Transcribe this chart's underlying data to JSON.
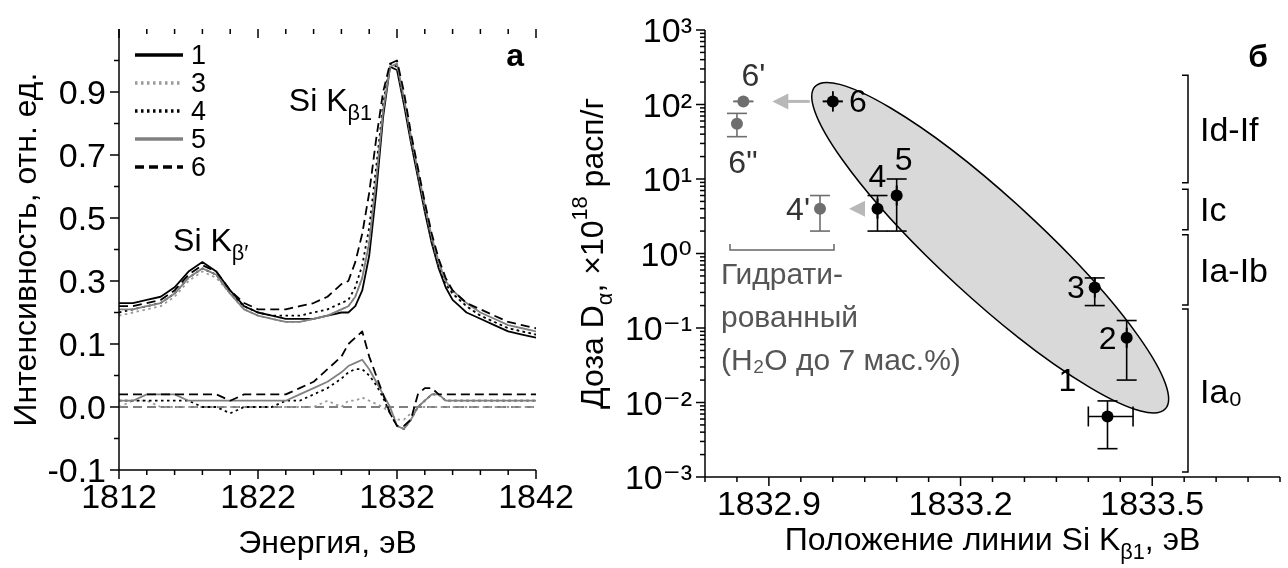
{
  "chart_data": [
    {
      "type": "line",
      "xlabel": "Энергия, эВ",
      "ylabel": "Интенсивность, отн. ед.",
      "legend": "top left",
      "annotations": [
        "а",
        "Si K$_{β′}$",
        "Si K$_{β1}$"
      ],
      "x": [
        1812,
        1813,
        1814,
        1815,
        1816,
        1817,
        1818,
        1819,
        1820,
        1821,
        1822,
        1823,
        1824,
        1825,
        1826,
        1827,
        1828,
        1828.5,
        1829,
        1829.5,
        1830,
        1830.5,
        1831,
        1831.5,
        1832,
        1832.5,
        1833,
        1833.5,
        1834,
        1834.5,
        1835,
        1835.5,
        1836,
        1836.5,
        1837,
        1838,
        1839,
        1840,
        1841,
        1842
      ],
      "series": [
        {
          "name": "1",
          "color": "#000000",
          "line_style": "solid",
          "axis": "y2",
          "values": [
            0.23,
            0.23,
            0.24,
            0.25,
            0.28,
            0.33,
            0.36,
            0.33,
            0.27,
            0.22,
            0.2,
            0.19,
            0.18,
            0.18,
            0.18,
            0.19,
            0.2,
            0.2,
            0.22,
            0.27,
            0.38,
            0.58,
            0.82,
            0.98,
            0.97,
            0.86,
            0.74,
            0.63,
            0.52,
            0.42,
            0.34,
            0.28,
            0.24,
            0.22,
            0.2,
            0.18,
            0.16,
            0.14,
            0.13,
            0.12
          ]
        },
        {
          "name": "3",
          "color": "#9a9a9a",
          "line_style": "dotted",
          "axis": "y2",
          "values": [
            0.19,
            0.2,
            0.21,
            0.22,
            0.25,
            0.3,
            0.33,
            0.31,
            0.26,
            0.21,
            0.19,
            0.18,
            0.17,
            0.17,
            0.18,
            0.19,
            0.21,
            0.22,
            0.25,
            0.31,
            0.43,
            0.63,
            0.85,
            0.99,
            0.98,
            0.87,
            0.75,
            0.64,
            0.53,
            0.43,
            0.35,
            0.3,
            0.26,
            0.24,
            0.22,
            0.19,
            0.17,
            0.15,
            0.14,
            0.13
          ]
        },
        {
          "name": "4",
          "color": "#000000",
          "line_style": "dotted",
          "axis": "y2",
          "values": [
            0.2,
            0.21,
            0.22,
            0.23,
            0.26,
            0.31,
            0.34,
            0.32,
            0.26,
            0.22,
            0.2,
            0.19,
            0.19,
            0.19,
            0.2,
            0.21,
            0.23,
            0.24,
            0.28,
            0.35,
            0.47,
            0.66,
            0.86,
            0.99,
            0.98,
            0.87,
            0.75,
            0.64,
            0.53,
            0.43,
            0.35,
            0.29,
            0.26,
            0.24,
            0.22,
            0.19,
            0.17,
            0.15,
            0.14,
            0.13
          ]
        },
        {
          "name": "5",
          "color": "#808080",
          "line_style": "solid",
          "axis": "y2",
          "values": [
            0.21,
            0.21,
            0.22,
            0.23,
            0.26,
            0.31,
            0.34,
            0.32,
            0.26,
            0.21,
            0.19,
            0.18,
            0.17,
            0.17,
            0.18,
            0.19,
            0.21,
            0.22,
            0.25,
            0.31,
            0.42,
            0.62,
            0.84,
            0.98,
            0.99,
            0.88,
            0.76,
            0.65,
            0.54,
            0.44,
            0.36,
            0.3,
            0.27,
            0.25,
            0.23,
            0.2,
            0.18,
            0.16,
            0.15,
            0.14
          ]
        },
        {
          "name": "6",
          "color": "#000000",
          "line_style": "dashed",
          "axis": "y2",
          "values": [
            0.22,
            0.22,
            0.23,
            0.24,
            0.27,
            0.32,
            0.35,
            0.33,
            0.27,
            0.23,
            0.21,
            0.21,
            0.21,
            0.22,
            0.23,
            0.25,
            0.29,
            0.3,
            0.36,
            0.45,
            0.58,
            0.75,
            0.9,
            0.99,
            1.0,
            0.9,
            0.77,
            0.66,
            0.55,
            0.45,
            0.37,
            0.31,
            0.27,
            0.25,
            0.23,
            0.21,
            0.19,
            0.17,
            0.16,
            0.15
          ]
        },
        {
          "color": "#9a9a9a",
          "line_style": "dotted",
          "values": [
            0.0,
            0.01,
            0.01,
            0.0,
            0.0,
            0.0,
            0.0,
            0.0,
            0.0,
            0.0,
            0.0,
            0.0,
            0.0,
            0.0,
            0.0,
            0.01,
            0.0,
            0.01,
            0.01,
            0.015,
            0.01,
            0.005,
            0.0,
            -0.01,
            -0.02,
            -0.02,
            -0.01,
            0.0,
            0.0,
            0.0,
            0.0,
            0.0,
            0.0,
            0.0,
            0.0,
            0.0,
            0.0,
            0.0,
            0.0,
            0.0
          ]
        },
        {
          "color": "#000000",
          "line_style": "dotted",
          "values": [
            0.01,
            0.01,
            0.01,
            0.01,
            0.01,
            0.01,
            0.0,
            0.0,
            -0.01,
            0.0,
            0.0,
            0.0,
            0.01,
            0.01,
            0.02,
            0.03,
            0.045,
            0.055,
            0.06,
            0.06,
            0.05,
            0.035,
            0.015,
            -0.01,
            -0.03,
            -0.035,
            -0.02,
            0.0,
            0.01,
            0.02,
            0.02,
            0.01,
            0.01,
            0.01,
            0.01,
            0.01,
            0.01,
            0.01,
            0.01,
            0.01
          ]
        },
        {
          "color": "#808080",
          "line_style": "solid",
          "values": [
            0.01,
            0.01,
            0.02,
            0.02,
            0.02,
            0.01,
            0.01,
            0.01,
            0.01,
            0.01,
            0.01,
            0.01,
            0.01,
            0.02,
            0.03,
            0.04,
            0.055,
            0.065,
            0.07,
            0.075,
            0.06,
            0.04,
            0.02,
            0.0,
            -0.03,
            -0.035,
            -0.02,
            0.0,
            0.01,
            0.02,
            0.02,
            0.01,
            0.01,
            0.01,
            0.01,
            0.01,
            0.01,
            0.01,
            0.01,
            0.01
          ]
        },
        {
          "color": "#000000",
          "line_style": "dashed",
          "values": [
            0.02,
            0.02,
            0.02,
            0.02,
            0.02,
            0.02,
            0.02,
            0.02,
            0.01,
            0.02,
            0.02,
            0.02,
            0.02,
            0.03,
            0.04,
            0.06,
            0.08,
            0.1,
            0.11,
            0.12,
            0.08,
            0.05,
            0.02,
            -0.01,
            -0.03,
            -0.03,
            -0.02,
            0.02,
            0.03,
            0.03,
            0.02,
            0.02,
            0.02,
            0.02,
            0.02,
            0.02,
            0.02,
            0.02,
            0.02,
            0.02
          ]
        }
      ],
      "xlim": [
        1812,
        1842
      ],
      "xticks": [
        1812,
        {
          "value": 1814,
          "label": null
        },
        {
          "value": 1816,
          "label": null
        },
        {
          "value": 1818,
          "label": null
        },
        {
          "value": 1820,
          "label": null
        },
        1822,
        {
          "value": 1824,
          "label": null
        },
        {
          "value": 1826,
          "label": null
        },
        {
          "value": 1828,
          "label": null
        },
        {
          "value": 1830,
          "label": null
        },
        1832,
        {
          "value": 1834,
          "label": null
        },
        {
          "value": 1836,
          "label": null
        },
        {
          "value": 1838,
          "label": null
        },
        {
          "value": 1840,
          "label": null
        },
        1842
      ],
      "ylim": [
        -0.1,
        0.6
      ],
      "yticks": [
        {
          "value": -0.1,
          "label": "-0.1"
        },
        {
          "value": -0.05,
          "label": null
        },
        {
          "value": 0,
          "label": "0.0"
        },
        {
          "value": 0.05,
          "label": null
        },
        {
          "value": 0.1,
          "label": "0.1"
        }
      ],
      "y2lim": [
        -0.3,
        1.1
      ],
      "y2ticks": [
        {
          "value": 0.2,
          "label": null
        },
        0.3,
        {
          "value": 0.4,
          "label": null
        },
        0.5,
        {
          "value": 0.6,
          "label": null
        },
        0.7,
        {
          "value": 0.8,
          "label": null
        },
        0.9,
        {
          "value": 1.0,
          "label": null
        }
      ],
      "ref_lines": [
        {
          "axis": "y",
          "value": 0,
          "color": "#000000",
          "line_style": "dashed"
        }
      ]
    },
    {
      "type": "scatter",
      "xlabel": "Положение линии Si K$_{β1}$, эВ",
      "ylabel": "Доза D$_{α}$, ×10$^{18}$ расп/г",
      "log": "y",
      "marker": "circle",
      "annotations": [
        "б",
        {
          "text": "6'",
          "x": 1832.86,
          "y": 110
        },
        {
          "text": "6\"",
          "x": 1832.85,
          "y": 55
        },
        {
          "text": "4'",
          "x": 1832.98,
          "y": 4
        },
        {
          "text": "4",
          "x": 1833.07,
          "y": 4
        },
        {
          "text": "5",
          "x": 1833.1,
          "y": 6
        },
        {
          "text": "6",
          "x": 1833.0,
          "y": 110
        },
        {
          "text": "3",
          "x": 1833.41,
          "y": 0.35
        },
        {
          "text": "2",
          "x": 1833.46,
          "y": 0.074
        },
        {
          "text": "1",
          "x": 1833.43,
          "y": 0.0065
        },
        "Гидрати-\nрованный\n(H₂O до 7 мас.%)",
        "Id-If",
        "Ic",
        "Ia-Ib",
        "Ia₀"
      ],
      "series": [
        {
          "color": "#000000",
          "x": [
            1833.43,
            1833.46,
            1833.41,
            1833.07,
            1833.1,
            1833.0
          ],
          "values": [
            0.0065,
            0.074,
            0.35,
            4,
            6,
            110
          ],
          "errors": [
            [
              0.0024,
              0.0105
            ],
            [
              0.02,
              0.126
            ],
            [
              0.2,
              0.47
            ],
            [
              2,
              6
            ],
            [
              2,
              10
            ],
            null
          ],
          "xerrors": [
            [
              1833.4,
              1833.47
            ],
            null,
            null,
            null,
            null,
            null
          ]
        },
        {
          "color": "#6e6e6e",
          "x": [
            1832.86,
            1832.85,
            1832.98
          ],
          "values": [
            110,
            55,
            4
          ],
          "errors": [
            null,
            [
              37,
              76
            ],
            [
              2,
              6
            ]
          ]
        }
      ],
      "xlim": [
        1832.8,
        1833.7
      ],
      "xticks": [
        {
          "value": 1832.8,
          "label": null
        },
        {
          "value": 1832.85,
          "label": null
        },
        1832.9,
        {
          "value": 1832.95,
          "label": null
        },
        {
          "value": 1833.0,
          "label": null
        },
        {
          "value": 1833.05,
          "label": null
        },
        {
          "value": 1833.1,
          "label": null
        },
        {
          "value": 1833.15,
          "label": null
        },
        1833.2,
        {
          "value": 1833.25,
          "label": null
        },
        {
          "value": 1833.3,
          "label": null
        },
        {
          "value": 1833.35,
          "label": null
        },
        {
          "value": 1833.4,
          "label": null
        },
        {
          "value": 1833.45,
          "label": null
        },
        1833.5,
        {
          "value": 1833.55,
          "label": null
        },
        {
          "value": 1833.6,
          "label": null
        },
        {
          "value": 1833.65,
          "label": null
        },
        {
          "value": 1833.7,
          "label": null
        }
      ],
      "ylim": [
        0.001,
        1000
      ],
      "yticks": [
        {
          "value": 0.001,
          "label": "10⁻³"
        },
        {
          "value": 0.01,
          "label": "10⁻²"
        },
        {
          "value": 0.1,
          "label": "10⁻¹"
        },
        {
          "value": 1,
          "label": "10⁰"
        },
        {
          "value": 10,
          "label": "10¹"
        },
        {
          "value": 100,
          "label": "10²"
        },
        {
          "value": 1000,
          "label": "10³"
        },
        {
          "value": 0.002,
          "label": null
        },
        {
          "value": 0.003,
          "label": null
        },
        {
          "value": 0.004,
          "label": null
        },
        {
          "value": 0.005,
          "label": null
        },
        {
          "value": 0.006,
          "label": null
        },
        {
          "value": 0.007,
          "label": null
        },
        {
          "value": 0.008,
          "label": null
        },
        {
          "value": 0.009,
          "label": null
        },
        {
          "value": 0.02,
          "label": null
        },
        {
          "value": 0.03,
          "label": null
        },
        {
          "value": 0.04,
          "label": null
        },
        {
          "value": 0.05,
          "label": null
        },
        {
          "value": 0.06,
          "label": null
        },
        {
          "value": 0.07,
          "label": null
        },
        {
          "value": 0.08,
          "label": null
        },
        {
          "value": 0.09,
          "label": null
        },
        {
          "value": 0.2,
          "label": null
        },
        {
          "value": 0.3,
          "label": null
        },
        {
          "value": 0.4,
          "label": null
        },
        {
          "value": 0.5,
          "label": null
        },
        {
          "value": 0.6,
          "label": null
        },
        {
          "value": 0.7,
          "label": null
        },
        {
          "value": 0.8,
          "label": null
        },
        {
          "value": 0.9,
          "label": null
        },
        {
          "value": 2,
          "label": null
        },
        {
          "value": 3,
          "label": null
        },
        {
          "value": 4,
          "label": null
        },
        {
          "value": 5,
          "label": null
        },
        {
          "value": 6,
          "label": null
        },
        {
          "value": 7,
          "label": null
        },
        {
          "value": 8,
          "label": null
        },
        {
          "value": 9,
          "label": null
        },
        {
          "value": 20,
          "label": null
        },
        {
          "value": 30,
          "label": null
        },
        {
          "value": 40,
          "label": null
        },
        {
          "value": 50,
          "label": null
        },
        {
          "value": 60,
          "label": null
        },
        {
          "value": 70,
          "label": null
        },
        {
          "value": 80,
          "label": null
        },
        {
          "value": 90,
          "label": null
        },
        {
          "value": 200,
          "label": null
        },
        {
          "value": 300,
          "label": null
        },
        {
          "value": 400,
          "label": null
        },
        {
          "value": 500,
          "label": null
        },
        {
          "value": 600,
          "label": null
        },
        {
          "value": 700,
          "label": null
        },
        {
          "value": 800,
          "label": null
        },
        {
          "value": 900,
          "label": null
        }
      ]
    }
  ]
}
